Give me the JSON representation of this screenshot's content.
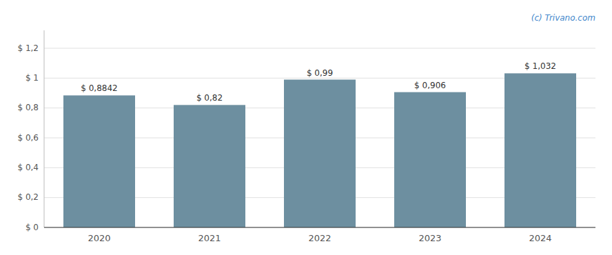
{
  "chart_data": {
    "type": "bar",
    "categories": [
      "2020",
      "2021",
      "2022",
      "2023",
      "2024"
    ],
    "values": [
      0.8842,
      0.82,
      0.99,
      0.906,
      1.032
    ],
    "value_labels": [
      "$ 0,8842",
      "$ 0,82",
      "$ 0,99",
      "$ 0,906",
      "$ 1,032"
    ],
    "color": "#6d8fa0",
    "ylim": [
      0,
      1.32
    ],
    "yticks": [
      {
        "value": 0,
        "label": "$ 0"
      },
      {
        "value": 0.2,
        "label": "$ 0,2"
      },
      {
        "value": 0.4,
        "label": "$ 0,4"
      },
      {
        "value": 0.6,
        "label": "$ 0,6"
      },
      {
        "value": 0.8,
        "label": "$ 0,8"
      },
      {
        "value": 1.0,
        "label": "$ 1"
      },
      {
        "value": 1.2,
        "label": "$ 1,2"
      }
    ],
    "grid": true,
    "data_labels": true,
    "annotations": [
      "(c) Trivano.com"
    ]
  }
}
